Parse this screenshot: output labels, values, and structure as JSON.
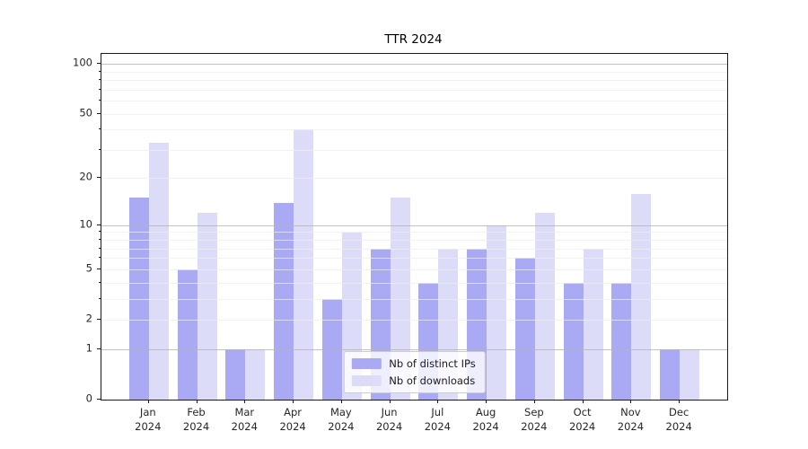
{
  "chart_data": {
    "type": "bar",
    "title": "TTR 2024",
    "categories": [
      "Jan",
      "Feb",
      "Mar",
      "Apr",
      "May",
      "Jun",
      "Jul",
      "Aug",
      "Sep",
      "Oct",
      "Nov",
      "Dec"
    ],
    "year_label": "2024",
    "series": [
      {
        "name": "Nb of distinct IPs",
        "color": "#a9a9f4",
        "values": [
          15,
          5,
          1,
          14,
          3,
          7,
          4,
          7,
          6,
          4,
          4,
          1
        ]
      },
      {
        "name": "Nb of downloads",
        "color": "#dcdcf9",
        "values": [
          33,
          12,
          1,
          40,
          9,
          15,
          7,
          10,
          12,
          7,
          16,
          1
        ]
      }
    ],
    "yaxis": {
      "scale": "log1p",
      "tick_labels": [
        "0",
        "1",
        "2",
        "5",
        "10",
        "20",
        "50",
        "100"
      ],
      "tick_values": [
        0,
        1,
        2,
        5,
        10,
        20,
        50,
        100
      ],
      "major_grid_values": [
        1,
        10,
        100
      ],
      "minor_grid_values": [
        2,
        3,
        4,
        5,
        6,
        7,
        8,
        9,
        20,
        30,
        40,
        50,
        60,
        70,
        80,
        90
      ],
      "ylim": [
        0,
        114
      ]
    },
    "legend": {
      "position": "lower center",
      "items": [
        "Nb of distinct IPs",
        "Nb of downloads"
      ]
    },
    "grid": true,
    "colors": {
      "background": "#ffffff",
      "spine": "#1a1a1a",
      "grid_major": "#b3b3b3",
      "grid_minor": "#ededed",
      "text": "#262626"
    }
  }
}
